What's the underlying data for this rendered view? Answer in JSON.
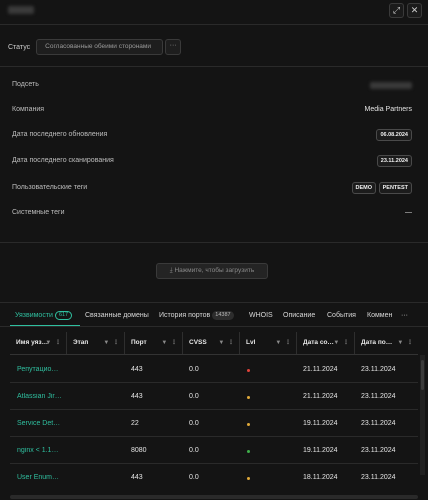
{
  "window": {
    "expand_glyph": "⤢",
    "close_glyph": "✕"
  },
  "status": {
    "label": "Статус",
    "value": "Согласованные обеими сторонами",
    "more_glyph": "···"
  },
  "fields": {
    "subnet_label": "Подсеть",
    "company_label": "Компания",
    "company_value": "Media Partners",
    "last_update_label": "Дата последнего обновления",
    "last_update_value": "06.08.2024",
    "last_scan_label": "Дата последнего сканирования",
    "last_scan_value": "23.11.2024",
    "user_tags_label": "Пользовательские теги",
    "user_tags": [
      "DEMO",
      "PENTEST"
    ],
    "system_tags_label": "Системные теги",
    "system_tags_value": "—"
  },
  "load_button": "⤓ Нажмите, чтобы загрузить",
  "tabs": {
    "vulns": "Уязвимости",
    "vulns_count": "617",
    "domains": "Связанные домены",
    "ports_history": "История портов",
    "ports_count": "14387",
    "whois": "WHOIS",
    "description": "Описание",
    "events": "События",
    "comments": "Коммен",
    "more": "···"
  },
  "table": {
    "headers": {
      "name": "Имя уяз…",
      "stage": "Этап",
      "port": "Порт",
      "cvss": "CVSS",
      "lvl": "Lvl",
      "date1": "Дата со…",
      "date2": "Дата по…"
    },
    "rows": [
      {
        "name": "Репутацио…",
        "port": "443",
        "cvss": "0.0",
        "level_color": "#e0433a",
        "date1": "21.11.2024",
        "date2": "23.11.2024"
      },
      {
        "name": "Atlassian Jir…",
        "port": "443",
        "cvss": "0.0",
        "level_color": "#e0a93a",
        "date1": "21.11.2024",
        "date2": "23.11.2024"
      },
      {
        "name": "Service Det…",
        "port": "22",
        "cvss": "0.0",
        "level_color": "#e0a93a",
        "date1": "19.11.2024",
        "date2": "23.11.2024"
      },
      {
        "name": "nginx < 1.1…",
        "port": "8080",
        "cvss": "0.0",
        "level_color": "#3fae4a",
        "date1": "19.11.2024",
        "date2": "23.11.2024"
      },
      {
        "name": "User Enum…",
        "port": "443",
        "cvss": "0.0",
        "level_color": "#e0a93a",
        "date1": "18.11.2024",
        "date2": "23.11.2024"
      }
    ]
  }
}
